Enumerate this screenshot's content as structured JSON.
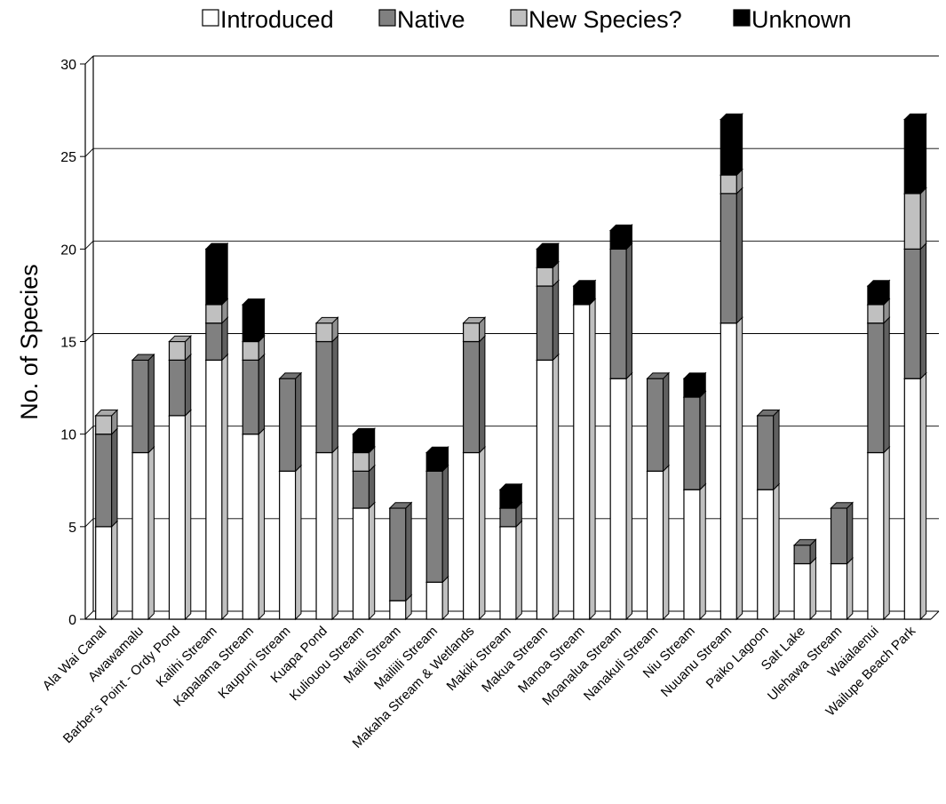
{
  "chart_data": {
    "type": "bar",
    "stacked": true,
    "style": "3d",
    "title": "",
    "xlabel": "",
    "ylabel": "No. of Species",
    "ylim": [
      0,
      30
    ],
    "yticks": [
      "0",
      "5",
      "10",
      "15",
      "20",
      "25",
      "30"
    ],
    "grid": true,
    "legend_position": "top",
    "categories": [
      "Ala Wai Canal",
      "Awawamalu",
      "Barber's Point - Ordy Pond",
      "Kalihi Stream",
      "Kapalama Stream",
      "Kaupuni Stream",
      "Kuapa Pond",
      "Kuliouou Stream",
      "Maili Stream",
      "Mailiili Stream",
      "Makaha Stream & Wetlands",
      "Makiki Stream",
      "Makua Stream",
      "Manoa Stream",
      "Moanalua Stream",
      "Nanakuli Stream",
      "Niu Stream",
      "Nuuanu Stream",
      "Paiko Lagoon",
      "Salt Lake",
      "Ulehawa Stream",
      "Waialaenui",
      "Wailupe Beach Park"
    ],
    "series": [
      {
        "name": "Introduced",
        "color": "#ffffff",
        "values": [
          5,
          9,
          11,
          14,
          10,
          8,
          9,
          6,
          1,
          2,
          9,
          5,
          14,
          17,
          13,
          8,
          7,
          16,
          7,
          3,
          3,
          9,
          13
        ]
      },
      {
        "name": "Native",
        "color": "#808080",
        "values": [
          5,
          5,
          3,
          2,
          4,
          5,
          6,
          2,
          5,
          6,
          6,
          1,
          4,
          0,
          7,
          5,
          5,
          7,
          4,
          1,
          3,
          7,
          7
        ]
      },
      {
        "name": "New Species?",
        "color": "#c0c0c0",
        "values": [
          1,
          0,
          1,
          1,
          1,
          0,
          1,
          1,
          0,
          0,
          1,
          0,
          1,
          0,
          0,
          0,
          0,
          1,
          0,
          0,
          0,
          1,
          3
        ]
      },
      {
        "name": "Unknown",
        "color": "#000000",
        "values": [
          0,
          0,
          0,
          3,
          2,
          0,
          0,
          1,
          0,
          1,
          0,
          1,
          1,
          1,
          1,
          0,
          1,
          3,
          0,
          0,
          0,
          1,
          4
        ]
      }
    ]
  }
}
